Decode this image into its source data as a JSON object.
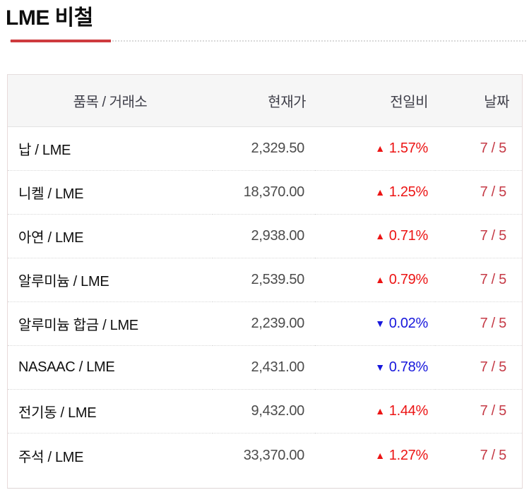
{
  "page": {
    "title": "LME 비철"
  },
  "table": {
    "columns": [
      {
        "key": "item",
        "label": "품목 / 거래소"
      },
      {
        "key": "price",
        "label": "현재가"
      },
      {
        "key": "change",
        "label": "전일비"
      },
      {
        "key": "date",
        "label": "날짜"
      }
    ],
    "rows": [
      {
        "item": "납 / LME",
        "price": "2,329.50",
        "direction": "up",
        "change": "1.57%",
        "date": "7 / 5"
      },
      {
        "item": "니켈 / LME",
        "price": "18,370.00",
        "direction": "up",
        "change": "1.25%",
        "date": "7 / 5"
      },
      {
        "item": "아연 / LME",
        "price": "2,938.00",
        "direction": "up",
        "change": "0.71%",
        "date": "7 / 5"
      },
      {
        "item": "알루미늄 / LME",
        "price": "2,539.50",
        "direction": "up",
        "change": "0.79%",
        "date": "7 / 5"
      },
      {
        "item": "알루미늄 합금 / LME",
        "price": "2,239.00",
        "direction": "down",
        "change": "0.02%",
        "date": "7 / 5"
      },
      {
        "item": "NASAAC / LME",
        "price": "2,431.00",
        "direction": "down",
        "change": "0.78%",
        "date": "7 / 5"
      },
      {
        "item": "전기동 / LME",
        "price": "9,432.00",
        "direction": "up",
        "change": "1.44%",
        "date": "7 / 5"
      },
      {
        "item": "주석 / LME",
        "price": "33,370.00",
        "direction": "up",
        "change": "1.27%",
        "date": "7 / 5"
      }
    ]
  },
  "icons": {
    "up": "▲",
    "down": "▼"
  },
  "colors": {
    "accent_underline": "#ce3b3e",
    "up": "#ec1414",
    "down": "#1717dc",
    "date": "#c53a46"
  }
}
